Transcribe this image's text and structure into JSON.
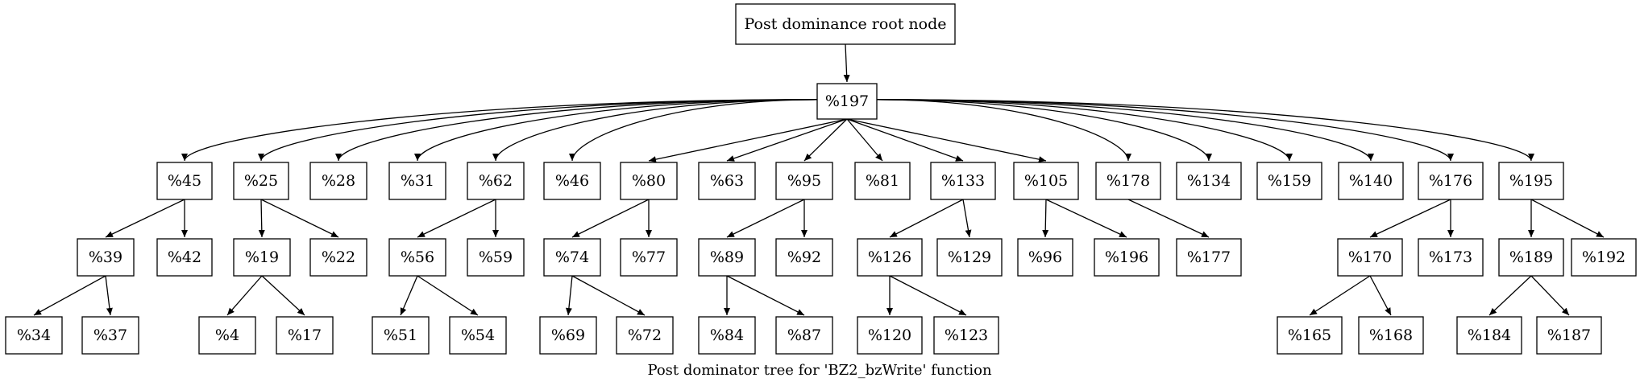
{
  "caption": "Post dominator tree for 'BZ2_bzWrite' function",
  "nodes": [
    {
      "id": "root",
      "label": "Post dominance root node"
    },
    {
      "id": "n197",
      "label": "%197"
    },
    {
      "id": "n45",
      "label": "%45"
    },
    {
      "id": "n25",
      "label": "%25"
    },
    {
      "id": "n28",
      "label": "%28"
    },
    {
      "id": "n31",
      "label": "%31"
    },
    {
      "id": "n62",
      "label": "%62"
    },
    {
      "id": "n46",
      "label": "%46"
    },
    {
      "id": "n80",
      "label": "%80"
    },
    {
      "id": "n63",
      "label": "%63"
    },
    {
      "id": "n95",
      "label": "%95"
    },
    {
      "id": "n81",
      "label": "%81"
    },
    {
      "id": "n133",
      "label": "%133"
    },
    {
      "id": "n105",
      "label": "%105"
    },
    {
      "id": "n178",
      "label": "%178"
    },
    {
      "id": "n134",
      "label": "%134"
    },
    {
      "id": "n159",
      "label": "%159"
    },
    {
      "id": "n140",
      "label": "%140"
    },
    {
      "id": "n176",
      "label": "%176"
    },
    {
      "id": "n195",
      "label": "%195"
    },
    {
      "id": "n39",
      "label": "%39"
    },
    {
      "id": "n42",
      "label": "%42"
    },
    {
      "id": "n19",
      "label": "%19"
    },
    {
      "id": "n22",
      "label": "%22"
    },
    {
      "id": "n56",
      "label": "%56"
    },
    {
      "id": "n59",
      "label": "%59"
    },
    {
      "id": "n74",
      "label": "%74"
    },
    {
      "id": "n77",
      "label": "%77"
    },
    {
      "id": "n89",
      "label": "%89"
    },
    {
      "id": "n92",
      "label": "%92"
    },
    {
      "id": "n126",
      "label": "%126"
    },
    {
      "id": "n129",
      "label": "%129"
    },
    {
      "id": "n96",
      "label": "%96"
    },
    {
      "id": "n196",
      "label": "%196"
    },
    {
      "id": "n177",
      "label": "%177"
    },
    {
      "id": "n170",
      "label": "%170"
    },
    {
      "id": "n173",
      "label": "%173"
    },
    {
      "id": "n189",
      "label": "%189"
    },
    {
      "id": "n192",
      "label": "%192"
    },
    {
      "id": "n34",
      "label": "%34"
    },
    {
      "id": "n37",
      "label": "%37"
    },
    {
      "id": "n4",
      "label": "%4"
    },
    {
      "id": "n17",
      "label": "%17"
    },
    {
      "id": "n51",
      "label": "%51"
    },
    {
      "id": "n54",
      "label": "%54"
    },
    {
      "id": "n69",
      "label": "%69"
    },
    {
      "id": "n72",
      "label": "%72"
    },
    {
      "id": "n84",
      "label": "%84"
    },
    {
      "id": "n87",
      "label": "%87"
    },
    {
      "id": "n120",
      "label": "%120"
    },
    {
      "id": "n123",
      "label": "%123"
    },
    {
      "id": "n165",
      "label": "%165"
    },
    {
      "id": "n168",
      "label": "%168"
    },
    {
      "id": "n184",
      "label": "%184"
    },
    {
      "id": "n187",
      "label": "%187"
    }
  ],
  "edges": [
    [
      "root",
      "n197"
    ],
    [
      "n197",
      "n45"
    ],
    [
      "n197",
      "n25"
    ],
    [
      "n197",
      "n28"
    ],
    [
      "n197",
      "n31"
    ],
    [
      "n197",
      "n62"
    ],
    [
      "n197",
      "n46"
    ],
    [
      "n197",
      "n80"
    ],
    [
      "n197",
      "n63"
    ],
    [
      "n197",
      "n95"
    ],
    [
      "n197",
      "n81"
    ],
    [
      "n197",
      "n133"
    ],
    [
      "n197",
      "n105"
    ],
    [
      "n197",
      "n178"
    ],
    [
      "n197",
      "n134"
    ],
    [
      "n197",
      "n159"
    ],
    [
      "n197",
      "n140"
    ],
    [
      "n197",
      "n176"
    ],
    [
      "n197",
      "n195"
    ],
    [
      "n45",
      "n39"
    ],
    [
      "n45",
      "n42"
    ],
    [
      "n25",
      "n19"
    ],
    [
      "n25",
      "n22"
    ],
    [
      "n62",
      "n56"
    ],
    [
      "n62",
      "n59"
    ],
    [
      "n80",
      "n74"
    ],
    [
      "n80",
      "n77"
    ],
    [
      "n95",
      "n89"
    ],
    [
      "n95",
      "n92"
    ],
    [
      "n133",
      "n126"
    ],
    [
      "n133",
      "n129"
    ],
    [
      "n105",
      "n96"
    ],
    [
      "n105",
      "n196"
    ],
    [
      "n178",
      "n177"
    ],
    [
      "n176",
      "n170"
    ],
    [
      "n176",
      "n173"
    ],
    [
      "n195",
      "n189"
    ],
    [
      "n195",
      "n192"
    ],
    [
      "n39",
      "n34"
    ],
    [
      "n39",
      "n37"
    ],
    [
      "n19",
      "n4"
    ],
    [
      "n19",
      "n17"
    ],
    [
      "n56",
      "n51"
    ],
    [
      "n56",
      "n54"
    ],
    [
      "n74",
      "n69"
    ],
    [
      "n74",
      "n72"
    ],
    [
      "n89",
      "n84"
    ],
    [
      "n89",
      "n87"
    ],
    [
      "n126",
      "n120"
    ],
    [
      "n126",
      "n123"
    ],
    [
      "n170",
      "n165"
    ],
    [
      "n170",
      "n168"
    ],
    [
      "n189",
      "n184"
    ],
    [
      "n189",
      "n187"
    ]
  ]
}
